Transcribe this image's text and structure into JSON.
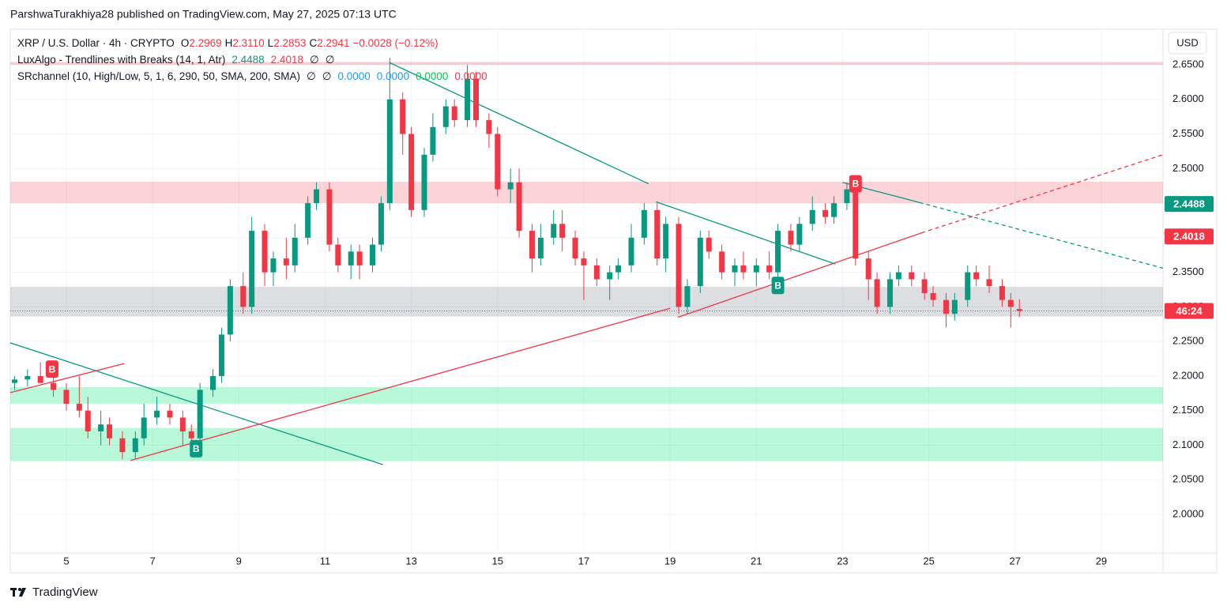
{
  "chart_data": {
    "type": "candlestick",
    "attribution": "ParshwaTurakhiya28 published on TradingView.com, May 27, 2025 07:13 UTC",
    "brand": "TradingView",
    "currency": "USD",
    "legend": {
      "symbol": "XRP / U.S. Dollar · 4h · CRYPTO",
      "ohlc": [
        {
          "key": "O",
          "value": "2.2969"
        },
        {
          "key": "H",
          "value": "2.3110"
        },
        {
          "key": "L",
          "value": "2.2853"
        },
        {
          "key": "C",
          "value": "2.2941"
        }
      ],
      "change": "−0.0028 (−0.12%)",
      "indicators": [
        {
          "name": "LuxAlgo - Trendlines with Breaks (14, 1, Atr)",
          "values": [
            {
              "text": "2.4488",
              "color": "#089981"
            },
            {
              "text": "2.4018",
              "color": "#f23645"
            },
            {
              "text": "∅",
              "color": "#131722"
            },
            {
              "text": "∅",
              "color": "#131722"
            }
          ]
        },
        {
          "name": "SRchannel (10, High/Low, 5, 1, 6, 290, 50, SMA, 200, SMA)",
          "values": [
            {
              "text": "∅",
              "color": "#131722"
            },
            {
              "text": "∅",
              "color": "#131722"
            },
            {
              "text": "0.0000",
              "color": "#2196f3"
            },
            {
              "text": "0.0000",
              "color": "#2196f3"
            },
            {
              "text": "0.0000",
              "color": "#00c853"
            },
            {
              "text": "0.0000",
              "color": "#f23645"
            }
          ]
        }
      ]
    },
    "up_color": "#089981",
    "down_color": "#f23645",
    "x": [
      3.8,
      4.1,
      4.4,
      4.7,
      5.0,
      5.3,
      5.5,
      5.8,
      6.0,
      6.3,
      6.6,
      6.8,
      7.1,
      7.4,
      7.7,
      7.9,
      8.1,
      8.4,
      8.6,
      8.8,
      9.1,
      9.3,
      9.6,
      9.8,
      10.1,
      10.3,
      10.6,
      10.8,
      11.1,
      11.3,
      11.6,
      11.8,
      12.1,
      12.3,
      12.5,
      12.8,
      13.0,
      13.3,
      13.5,
      13.8,
      14.0,
      14.3,
      14.5,
      14.8,
      15.0,
      15.3,
      15.5,
      15.8,
      16.0,
      16.3,
      16.5,
      16.8,
      17.0,
      17.3,
      17.6,
      17.8,
      18.1,
      18.4,
      18.7,
      18.9,
      19.2,
      19.4,
      19.7,
      19.9,
      20.2,
      20.5,
      20.7,
      21.0,
      21.3,
      21.5,
      21.8,
      22.0,
      22.3,
      22.6,
      22.8,
      23.1,
      23.3,
      23.6,
      23.8,
      24.1,
      24.3,
      24.6,
      24.9,
      25.1,
      25.4,
      25.6,
      25.9,
      26.1,
      26.4,
      26.7,
      26.9,
      27.1
    ],
    "open": [
      2.19,
      2.195,
      2.2,
      2.19,
      2.18,
      2.16,
      2.15,
      2.12,
      2.13,
      2.11,
      2.09,
      2.11,
      2.14,
      2.15,
      2.14,
      2.12,
      2.11,
      2.18,
      2.2,
      2.26,
      2.33,
      2.3,
      2.41,
      2.35,
      2.37,
      2.36,
      2.4,
      2.45,
      2.47,
      2.39,
      2.36,
      2.38,
      2.36,
      2.39,
      2.45,
      2.6,
      2.55,
      2.44,
      2.52,
      2.56,
      2.59,
      2.57,
      2.63,
      2.57,
      2.55,
      2.47,
      2.48,
      2.41,
      2.37,
      2.4,
      2.42,
      2.4,
      2.37,
      2.36,
      2.34,
      2.35,
      2.36,
      2.4,
      2.44,
      2.37,
      2.42,
      2.3,
      2.33,
      2.4,
      2.38,
      2.35,
      2.36,
      2.35,
      2.36,
      2.35,
      2.41,
      2.39,
      2.42,
      2.44,
      2.43,
      2.45,
      2.47,
      2.37,
      2.34,
      2.3,
      2.34,
      2.35,
      2.34,
      2.32,
      2.31,
      2.29,
      2.31,
      2.35,
      2.34,
      2.33,
      2.31,
      2.2969
    ],
    "high": [
      2.2,
      2.21,
      2.22,
      2.2,
      2.19,
      2.2,
      2.17,
      2.15,
      2.14,
      2.12,
      2.12,
      2.16,
      2.17,
      2.16,
      2.15,
      2.13,
      2.19,
      2.21,
      2.27,
      2.34,
      2.35,
      2.43,
      2.42,
      2.38,
      2.4,
      2.42,
      2.46,
      2.48,
      2.48,
      2.4,
      2.39,
      2.39,
      2.4,
      2.46,
      2.66,
      2.61,
      2.56,
      2.53,
      2.58,
      2.6,
      2.6,
      2.65,
      2.64,
      2.58,
      2.56,
      2.5,
      2.5,
      2.42,
      2.42,
      2.44,
      2.44,
      2.41,
      2.38,
      2.37,
      2.36,
      2.37,
      2.42,
      2.45,
      2.45,
      2.43,
      2.43,
      2.34,
      2.41,
      2.41,
      2.39,
      2.37,
      2.38,
      2.37,
      2.38,
      2.42,
      2.42,
      2.43,
      2.46,
      2.45,
      2.46,
      2.48,
      2.48,
      2.38,
      2.35,
      2.35,
      2.36,
      2.36,
      2.35,
      2.33,
      2.32,
      2.32,
      2.36,
      2.36,
      2.36,
      2.34,
      2.32,
      2.311
    ],
    "low": [
      2.18,
      2.185,
      2.19,
      2.17,
      2.15,
      2.14,
      2.11,
      2.1,
      2.1,
      2.08,
      2.08,
      2.1,
      2.13,
      2.13,
      2.1,
      2.09,
      2.1,
      2.17,
      2.19,
      2.25,
      2.29,
      2.29,
      2.33,
      2.33,
      2.34,
      2.35,
      2.39,
      2.44,
      2.38,
      2.35,
      2.34,
      2.34,
      2.35,
      2.38,
      2.44,
      2.52,
      2.43,
      2.43,
      2.51,
      2.55,
      2.56,
      2.56,
      2.56,
      2.53,
      2.46,
      2.45,
      2.4,
      2.35,
      2.36,
      2.39,
      2.38,
      2.36,
      2.31,
      2.33,
      2.31,
      2.34,
      2.35,
      2.39,
      2.36,
      2.35,
      2.29,
      2.29,
      2.32,
      2.37,
      2.34,
      2.33,
      2.34,
      2.33,
      2.34,
      2.34,
      2.38,
      2.38,
      2.41,
      2.42,
      2.42,
      2.44,
      2.36,
      2.31,
      2.29,
      2.29,
      2.33,
      2.33,
      2.31,
      2.3,
      2.27,
      2.28,
      2.3,
      2.33,
      2.32,
      2.3,
      2.27,
      2.2853
    ],
    "close": [
      2.195,
      2.2,
      2.19,
      2.18,
      2.16,
      2.15,
      2.12,
      2.13,
      2.11,
      2.09,
      2.11,
      2.14,
      2.15,
      2.14,
      2.12,
      2.11,
      2.18,
      2.2,
      2.26,
      2.33,
      2.3,
      2.41,
      2.35,
      2.37,
      2.36,
      2.4,
      2.45,
      2.47,
      2.39,
      2.36,
      2.38,
      2.36,
      2.39,
      2.45,
      2.6,
      2.55,
      2.44,
      2.52,
      2.56,
      2.59,
      2.57,
      2.63,
      2.57,
      2.55,
      2.47,
      2.48,
      2.41,
      2.37,
      2.4,
      2.42,
      2.4,
      2.37,
      2.36,
      2.34,
      2.35,
      2.36,
      2.4,
      2.44,
      2.37,
      2.42,
      2.3,
      2.33,
      2.4,
      2.38,
      2.35,
      2.36,
      2.35,
      2.36,
      2.35,
      2.41,
      2.39,
      2.42,
      2.44,
      2.43,
      2.45,
      2.47,
      2.37,
      2.34,
      2.3,
      2.34,
      2.35,
      2.34,
      2.32,
      2.31,
      2.29,
      2.31,
      2.35,
      2.34,
      2.33,
      2.31,
      2.3,
      2.2941
    ],
    "xlim": [
      3.7,
      30.43
    ],
    "ylim": [
      1.944,
      2.698
    ],
    "xticks": [
      5,
      7,
      9,
      11,
      13,
      15,
      17,
      19,
      21,
      23,
      25,
      27,
      29
    ],
    "yticks": [
      {
        "value": 2.0,
        "label": "2.0000"
      },
      {
        "value": 2.05,
        "label": "2.0500"
      },
      {
        "value": 2.1,
        "label": "2.1000"
      },
      {
        "value": 2.15,
        "label": "2.1500"
      },
      {
        "value": 2.2,
        "label": "2.2000"
      },
      {
        "value": 2.25,
        "label": "2.2500"
      },
      {
        "value": 2.3,
        "label": "2.3000"
      },
      {
        "value": 2.35,
        "label": "2.3500"
      },
      {
        "value": 2.4,
        "label": "2.4000"
      },
      {
        "value": 2.45,
        "label": "2.4500"
      },
      {
        "value": 2.5,
        "label": "2.5000"
      },
      {
        "value": 2.55,
        "label": "2.5500"
      },
      {
        "value": 2.6,
        "label": "2.6000"
      },
      {
        "value": 2.65,
        "label": "2.6500"
      }
    ],
    "grid": true,
    "zones": [
      {
        "low": 2.65,
        "high": 2.654,
        "color": "rgba(242,54,69,0.25)"
      },
      {
        "low": 2.45,
        "high": 2.481,
        "color": "rgba(242,54,69,0.22)"
      },
      {
        "low": 2.286,
        "high": 2.329,
        "color": "rgba(120,123,134,0.25)"
      },
      {
        "low": 2.16,
        "high": 2.184,
        "color": "rgba(0,230,118,0.27)"
      },
      {
        "low": 2.077,
        "high": 2.125,
        "color": "rgba(0,230,118,0.27)"
      }
    ],
    "trendlines": [
      {
        "x": [
          3.7,
          12.34
        ],
        "y": [
          2.248,
          2.072
        ],
        "color": "#089981",
        "dashed": false
      },
      {
        "x": [
          3.7,
          6.34
        ],
        "y": [
          2.176,
          2.218
        ],
        "color": "#f23645",
        "dashed": false
      },
      {
        "x": [
          6.49,
          19.0
        ],
        "y": [
          2.078,
          2.298
        ],
        "color": "#f23645",
        "dashed": false
      },
      {
        "x": [
          12.5,
          18.5
        ],
        "y": [
          2.653,
          2.478
        ],
        "color": "#089981",
        "dashed": false
      },
      {
        "x": [
          18.67,
          22.83
        ],
        "y": [
          2.452,
          2.362
        ],
        "color": "#089981",
        "dashed": false
      },
      {
        "x": [
          19.18,
          24.83
        ],
        "y": [
          2.285,
          2.407
        ],
        "color": "#f23645",
        "dashed": false
      },
      {
        "x": [
          24.83,
          30.43
        ],
        "y": [
          2.407,
          2.52
        ],
        "color": "#f23645",
        "dashed": true
      },
      {
        "x": [
          23.0,
          24.78
        ],
        "y": [
          2.48,
          2.451
        ],
        "color": "#089981",
        "dashed": false
      },
      {
        "x": [
          24.78,
          30.43
        ],
        "y": [
          2.451,
          2.356
        ],
        "color": "#089981",
        "dashed": true
      }
    ],
    "breaks": [
      {
        "x": 4.67,
        "y": 2.21,
        "label": "B",
        "color": "#f23645"
      },
      {
        "x": 8.01,
        "y": 2.095,
        "label": "B",
        "color": "#089981"
      },
      {
        "x": 21.5,
        "y": 2.331,
        "label": "B",
        "color": "#089981"
      },
      {
        "x": 23.3,
        "y": 2.478,
        "label": "B",
        "color": "#f23645"
      }
    ],
    "price_tags": [
      {
        "value": 2.4488,
        "label": "2.4488",
        "color": "#089981"
      },
      {
        "value": 2.4018,
        "label": "2.4018",
        "color": "#f23645"
      },
      {
        "value": 2.2941,
        "label": "46:24",
        "color": "#f23645"
      }
    ]
  }
}
